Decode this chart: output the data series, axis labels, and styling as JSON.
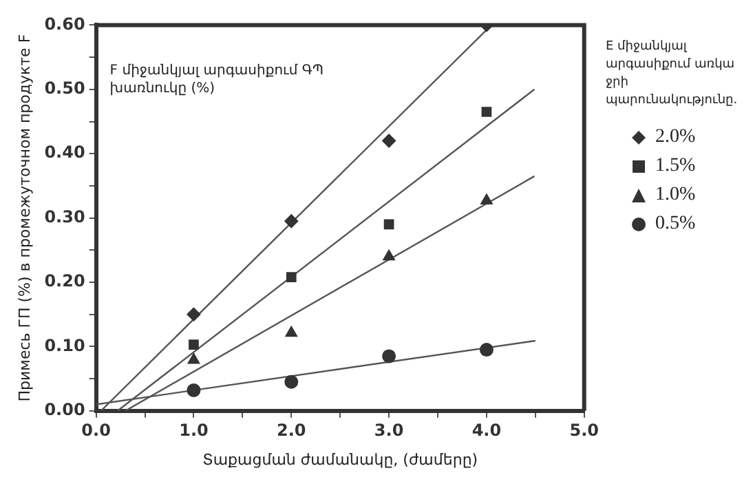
{
  "chart_data": {
    "type": "scatter",
    "xlabel": "Տաքացման ժամանակը, (ժամերը)",
    "ylabel": "Примесь ГП (%) в промежуточном продукте F",
    "annotations": [
      "F միջանկյալ արգասիքում ԳՊ խառնուկը (%)"
    ],
    "legend_title": "E միջանկյալ արգասիքում առկա ջրի պարունակությունը.",
    "legend": "right",
    "grid": false,
    "x": [
      1,
      2,
      3,
      4
    ],
    "xlim": [
      0,
      5
    ],
    "xticks": [
      {
        "value": 0,
        "label": "0.0"
      },
      {
        "value": 0.5,
        "label": null
      },
      {
        "value": 1,
        "label": "1.0"
      },
      {
        "value": 1.5,
        "label": null
      },
      {
        "value": 2,
        "label": "2.0"
      },
      {
        "value": 2.5,
        "label": null
      },
      {
        "value": 3,
        "label": "3.0"
      },
      {
        "value": 3.5,
        "label": null
      },
      {
        "value": 4,
        "label": "4.0"
      },
      {
        "value": 4.5,
        "label": null
      },
      {
        "value": 5,
        "label": "5.0"
      }
    ],
    "ylim": [
      0,
      0.6
    ],
    "yticks": [
      {
        "value": 0,
        "label": "0.00"
      },
      {
        "value": 0.05,
        "label": null
      },
      {
        "value": 0.1,
        "label": "0.10"
      },
      {
        "value": 0.15,
        "label": null
      },
      {
        "value": 0.2,
        "label": "0.20"
      },
      {
        "value": 0.25,
        "label": null
      },
      {
        "value": 0.3,
        "label": "0.30"
      },
      {
        "value": 0.35,
        "label": null
      },
      {
        "value": 0.4,
        "label": "0.40"
      },
      {
        "value": 0.45,
        "label": null
      },
      {
        "value": 0.5,
        "label": "0.50"
      },
      {
        "value": 0.55,
        "label": null
      },
      {
        "value": 0.6,
        "label": "0.60"
      }
    ],
    "series": [
      {
        "name": "2.0%",
        "type": "scatter",
        "marker": "diamond",
        "color": "#333333",
        "values": [
          0.15,
          0.295,
          0.42,
          0.6
        ]
      },
      {
        "name": "1.5%",
        "type": "scatter",
        "marker": "square",
        "color": "#333333",
        "values": [
          0.103,
          0.208,
          0.29,
          0.465
        ]
      },
      {
        "name": "1.0%",
        "type": "scatter",
        "marker": "triangle",
        "color": "#333333",
        "values": [
          0.079,
          0.121,
          0.24,
          0.327
        ]
      },
      {
        "name": "0.5%",
        "type": "scatter",
        "marker": "circle",
        "color": "#333333",
        "values": [
          0.032,
          0.045,
          0.085,
          0.095
        ]
      },
      {
        "type": "line",
        "marker": "none",
        "color": "#555555",
        "x": [
          0.05,
          4.05
        ],
        "values": [
          0,
          0.6
        ]
      },
      {
        "type": "line",
        "marker": "none",
        "color": "#555555",
        "x": [
          0.22,
          4.49
        ],
        "values": [
          0,
          0.5
        ]
      },
      {
        "type": "line",
        "marker": "none",
        "color": "#555555",
        "x": [
          0.3,
          4.49
        ],
        "values": [
          0,
          0.365
        ]
      },
      {
        "type": "line",
        "marker": "none",
        "color": "#555555",
        "x": [
          0,
          4.5
        ],
        "values": [
          0.01,
          0.109
        ]
      }
    ]
  }
}
